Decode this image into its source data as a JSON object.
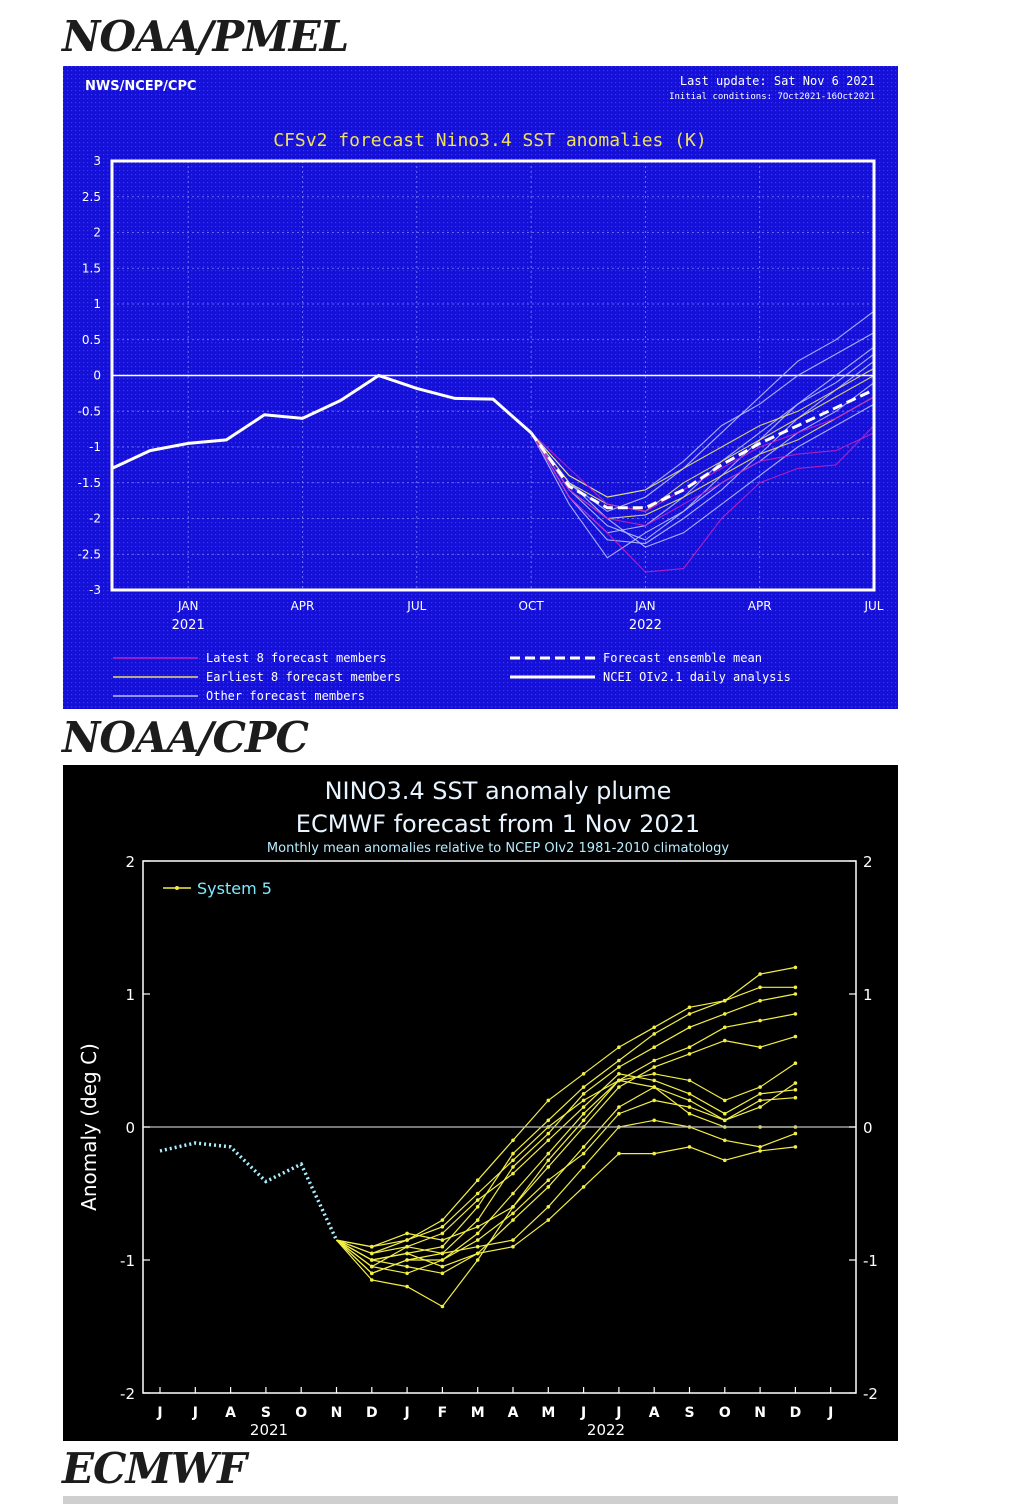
{
  "headings": {
    "h1": "NOAA/PMEL",
    "h2": "NOAA/CPC",
    "h3": "ECMWF"
  },
  "chart_data": [
    {
      "type": "line",
      "source": "NWS/NCEP/CPC",
      "last_update": "Last update: Sat Nov 6 2021",
      "initial_conditions": "Initial conditions: 7Oct2021-16Oct2021",
      "title": "CFSv2 forecast Nino3.4 SST anomalies (K)",
      "ylim": [
        -3,
        3
      ],
      "yticks": [
        "3",
        "2.5",
        "2",
        "1.5",
        "1",
        "0.5",
        "0",
        "-0.5",
        "-1",
        "-1.5",
        "-2",
        "-2.5",
        "-3"
      ],
      "xticks": [
        "JAN",
        "APR",
        "JUL",
        "OCT",
        "JAN",
        "APR",
        "JUL"
      ],
      "year_labels": [
        "2021",
        "2022"
      ],
      "legend": [
        "Latest 8 forecast members",
        "Earliest 8 forecast members",
        "Other forecast members",
        "Forecast ensemble mean",
        "NCEI OIv2.1 daily analysis"
      ],
      "colors": {
        "background": "#1410d8",
        "latest": "#c020c0",
        "earliest": "#e8e070",
        "other": "#b8c0ff",
        "analysis": "#ffffff"
      },
      "analysis_x": [
        "2020-11",
        "2020-12",
        "2021-01",
        "2021-02",
        "2021-03",
        "2021-04",
        "2021-05",
        "2021-06",
        "2021-07",
        "2021-08",
        "2021-09",
        "2021-10"
      ],
      "analysis_y": [
        -1.3,
        -1.05,
        -0.95,
        -0.9,
        -0.55,
        -0.6,
        -0.35,
        0.0,
        -0.18,
        -0.32,
        -0.33,
        -0.8
      ],
      "forecast_x": [
        "2021-10",
        "2021-11",
        "2021-12",
        "2022-01",
        "2022-02",
        "2022-03",
        "2022-04",
        "2022-05",
        "2022-06",
        "2022-07"
      ],
      "ensemble_mean": [
        -0.8,
        -1.55,
        -1.85,
        -1.85,
        -1.6,
        -1.25,
        -0.95,
        -0.7,
        -0.45,
        -0.2
      ],
      "members": [
        {
          "group": "latest",
          "values": [
            -0.8,
            -1.7,
            -2.2,
            -2.75,
            -2.7,
            -2.0,
            -1.5,
            -1.3,
            -1.25,
            -0.7
          ]
        },
        {
          "group": "latest",
          "values": [
            -0.8,
            -1.6,
            -2.0,
            -2.1,
            -1.8,
            -1.5,
            -1.2,
            -1.1,
            -1.05,
            -0.8
          ]
        },
        {
          "group": "latest",
          "values": [
            -0.8,
            -1.3,
            -1.8,
            -1.9,
            -1.6,
            -1.3,
            -1.0,
            -0.8,
            -0.6,
            -0.3
          ]
        },
        {
          "group": "earliest",
          "values": [
            -0.8,
            -1.5,
            -1.8,
            -1.9,
            -1.5,
            -1.2,
            -0.9,
            -0.6,
            -0.3,
            0.0
          ]
        },
        {
          "group": "earliest",
          "values": [
            -0.8,
            -1.4,
            -1.7,
            -1.6,
            -1.3,
            -1.0,
            -0.7,
            -0.5,
            -0.2,
            0.1
          ]
        },
        {
          "group": "earliest",
          "values": [
            -0.8,
            -1.6,
            -2.0,
            -1.95,
            -1.7,
            -1.4,
            -1.1,
            -0.9,
            -0.6,
            -0.3
          ]
        },
        {
          "group": "other",
          "values": [
            -0.8,
            -1.8,
            -2.55,
            -2.2,
            -1.9,
            -1.4,
            -0.9,
            -0.4,
            0.0,
            0.4
          ]
        },
        {
          "group": "other",
          "values": [
            -0.8,
            -1.7,
            -2.3,
            -2.35,
            -2.0,
            -1.6,
            -1.1,
            -0.6,
            -0.2,
            0.2
          ]
        },
        {
          "group": "other",
          "values": [
            -0.8,
            -1.5,
            -1.9,
            -1.7,
            -1.3,
            -0.8,
            -0.3,
            0.2,
            0.5,
            0.9
          ]
        },
        {
          "group": "other",
          "values": [
            -0.8,
            -1.4,
            -1.7,
            -1.6,
            -1.2,
            -0.7,
            -0.4,
            0.0,
            0.3,
            0.6
          ]
        },
        {
          "group": "other",
          "values": [
            -0.8,
            -1.6,
            -2.1,
            -2.3,
            -1.9,
            -1.5,
            -1.2,
            -0.8,
            -0.5,
            -0.1
          ]
        },
        {
          "group": "other",
          "values": [
            -0.8,
            -1.7,
            -2.2,
            -2.1,
            -1.7,
            -1.2,
            -0.8,
            -0.4,
            -0.1,
            0.3
          ]
        },
        {
          "group": "other",
          "values": [
            -0.8,
            -1.5,
            -2.0,
            -2.4,
            -2.2,
            -1.8,
            -1.4,
            -1.0,
            -0.7,
            -0.4
          ]
        }
      ]
    },
    {
      "type": "line",
      "title": "NINO3.4 SST anomaly plume",
      "subtitle": "ECMWF forecast from 1 Nov 2021",
      "note": "Monthly mean anomalies relative to NCEP OIv2 1981-2010 climatology",
      "ylabel": "Anomaly (deg C)",
      "ylim": [
        -2,
        2
      ],
      "yticks": [
        "2",
        "1",
        "0",
        "-1",
        "-2"
      ],
      "xticks": [
        "J",
        "J",
        "A",
        "S",
        "O",
        "N",
        "D",
        "J",
        "F",
        "M",
        "A",
        "M",
        "J",
        "J",
        "A",
        "S",
        "O",
        "N",
        "D",
        "J"
      ],
      "year_labels": [
        "2021",
        "2022"
      ],
      "legend": [
        "System 5"
      ],
      "colors": {
        "background": "#000000",
        "members": "#f2ee44",
        "observed": "#a8f0ff",
        "legend_text": "#7fe9ff"
      },
      "observed_x": [
        "2021-05",
        "2021-06",
        "2021-07",
        "2021-08",
        "2021-09",
        "2021-10"
      ],
      "observed_y": [
        -0.18,
        -0.12,
        -0.15,
        -0.41,
        -0.28,
        -0.85
      ],
      "forecast_x": [
        "2021-10",
        "2021-11",
        "2021-12",
        "2022-01",
        "2022-02",
        "2022-03",
        "2022-04",
        "2022-05",
        "2022-06",
        "2022-07",
        "2022-08",
        "2022-09",
        "2022-10",
        "2022-11"
      ],
      "members": [
        [
          -0.85,
          -1.0,
          -0.95,
          -0.9,
          -0.6,
          -0.2,
          0.05,
          0.3,
          0.5,
          0.7,
          0.85,
          0.95,
          1.15,
          1.2
        ],
        [
          -0.85,
          -0.95,
          -0.85,
          -0.7,
          -0.4,
          -0.1,
          0.2,
          0.4,
          0.6,
          0.75,
          0.9,
          0.95,
          1.05,
          1.05
        ],
        [
          -0.85,
          -1.05,
          -0.9,
          -0.95,
          -0.7,
          -0.3,
          -0.05,
          0.25,
          0.45,
          0.6,
          0.75,
          0.85,
          0.95,
          1.0
        ],
        [
          -0.85,
          -1.1,
          -1.0,
          -1.0,
          -0.8,
          -0.5,
          -0.2,
          0.1,
          0.35,
          0.5,
          0.6,
          0.75,
          0.8,
          0.85
        ],
        [
          -0.85,
          -0.9,
          -0.8,
          -0.85,
          -0.75,
          -0.6,
          -0.3,
          0.0,
          0.3,
          0.45,
          0.55,
          0.65,
          0.6,
          0.68
        ],
        [
          -0.85,
          -1.15,
          -1.2,
          -1.35,
          -1.0,
          -0.6,
          -0.25,
          0.05,
          0.35,
          0.4,
          0.35,
          0.2,
          0.3,
          0.48
        ],
        [
          -0.85,
          -1.0,
          -1.05,
          -1.1,
          -0.95,
          -0.7,
          -0.45,
          -0.15,
          0.15,
          0.3,
          0.2,
          0.05,
          0.15,
          0.33
        ],
        [
          -0.85,
          -0.95,
          -0.9,
          -0.8,
          -0.55,
          -0.35,
          -0.1,
          0.15,
          0.4,
          0.35,
          0.25,
          0.1,
          0.25,
          0.28
        ],
        [
          -0.85,
          -1.05,
          -1.1,
          -1.0,
          -0.85,
          -0.65,
          -0.4,
          -0.2,
          0.1,
          0.2,
          0.15,
          0.05,
          0.2,
          0.22
        ],
        [
          -0.85,
          -0.9,
          -0.85,
          -0.75,
          -0.5,
          -0.25,
          0.0,
          0.2,
          0.35,
          0.3,
          0.1,
          0.0,
          0.0,
          0.0
        ],
        [
          -0.85,
          -1.1,
          -1.0,
          -0.95,
          -0.9,
          -0.85,
          -0.6,
          -0.3,
          0.0,
          0.05,
          0.0,
          -0.1,
          -0.15,
          -0.05
        ],
        [
          -0.85,
          -1.0,
          -0.95,
          -1.05,
          -0.95,
          -0.9,
          -0.7,
          -0.45,
          -0.2,
          -0.2,
          -0.15,
          -0.25,
          -0.18,
          -0.15
        ]
      ]
    }
  ]
}
